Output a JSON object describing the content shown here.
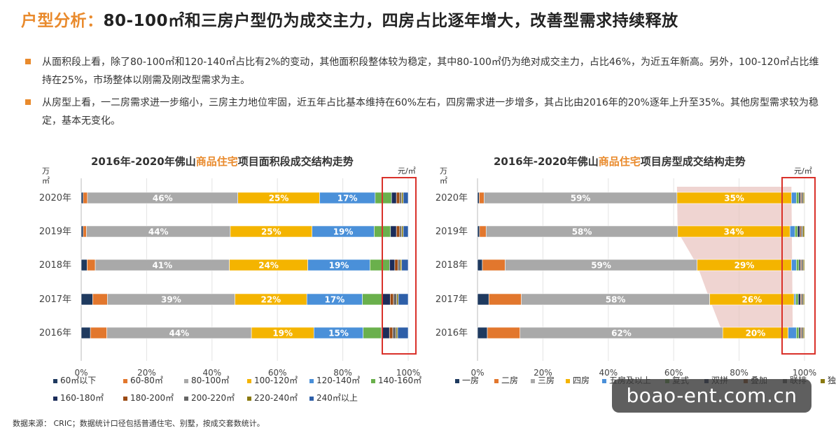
{
  "header": {
    "title_prefix": "户型分析：",
    "title_rest": "80-100㎡和三房户型仍为成交主力，四房占比逐年增大，改善型需求持续释放"
  },
  "bullets": [
    "从面积段上看，除了80-100㎡和120-140㎡占比有2%的变动，其他面积段整体较为稳定，其中80-100㎡仍为绝对成交主力，占比46%，为近五年新高。另外，100-120㎡占比维持在25%，市场整体以刚需及刚改型需求为主。",
    "从房型上看，一二房需求进一步缩小，三房主力地位牢固，近五年占比基本维持在60%左右，四房需求进一步增多，其占比由2016年的20%逐年上升至35%。其他房型需求较为稳定，基本无变化。"
  ],
  "colors": {
    "accent": "#e98a2c",
    "highlight_box": "#d9312a",
    "trend_band": "#eac6c1"
  },
  "chart_data": [
    {
      "type": "bar",
      "orientation": "horizontal",
      "stacked": "percent",
      "title_parts": [
        "2016年-2020年佛山",
        "商品住宅",
        "项目面积段成交结构走势"
      ],
      "title_highlight_color": "#e98a2c",
      "unit_left": "万㎡",
      "unit_right": "元/㎡",
      "categories": [
        "2020年",
        "2019年",
        "2018年",
        "2017年",
        "2016年"
      ],
      "xticks": [
        "0%",
        "20%",
        "40%",
        "60%",
        "80%",
        "100%"
      ],
      "xlim": [
        0,
        100
      ],
      "legend_position": "bottom",
      "highlight_box": "right edge, last segments",
      "series": [
        {
          "name": "60㎡以下",
          "color": "#1f3a5f",
          "values": [
            0.6,
            0.6,
            1.8,
            3.5,
            2.8
          ]
        },
        {
          "name": "60-80㎡",
          "color": "#e2772d",
          "values": [
            1.3,
            1.0,
            2.5,
            4.5,
            5.0
          ]
        },
        {
          "name": "80-100㎡",
          "color": "#a9a9a9",
          "values": [
            46,
            44,
            41,
            39,
            44
          ],
          "labels": [
            "46%",
            "44%",
            "41%",
            "39%",
            "44%"
          ]
        },
        {
          "name": "100-120㎡",
          "color": "#f4b400",
          "values": [
            25,
            25,
            24,
            22,
            19
          ],
          "labels": [
            "25%",
            "25%",
            "24%",
            "22%",
            "19%"
          ]
        },
        {
          "name": "120-140㎡",
          "color": "#4a90d9",
          "values": [
            17,
            19,
            19,
            17,
            15
          ],
          "labels": [
            "17%",
            "19%",
            "19%",
            "17%",
            "15%"
          ]
        },
        {
          "name": "140-160㎡",
          "color": "#6ab04c",
          "values": [
            5,
            5,
            6,
            6,
            5.5
          ]
        },
        {
          "name": "160-180㎡",
          "color": "#1c2d5a",
          "values": [
            1.5,
            1.8,
            1.6,
            2.5,
            2.5
          ]
        },
        {
          "name": "180-200㎡",
          "color": "#9b4a13",
          "values": [
            1.0,
            1.0,
            1.0,
            1.0,
            1.0
          ]
        },
        {
          "name": "200-220㎡",
          "color": "#666666",
          "values": [
            0.6,
            0.6,
            0.6,
            1.0,
            1.0
          ]
        },
        {
          "name": "220-240㎡",
          "color": "#8a7a10",
          "values": [
            0.5,
            0.5,
            0.5,
            0.5,
            0.5
          ]
        },
        {
          "name": "240㎡以上",
          "color": "#2e5fa8",
          "values": [
            1.5,
            1.5,
            2.0,
            3.0,
            3.2
          ]
        }
      ]
    },
    {
      "type": "bar",
      "orientation": "horizontal",
      "stacked": "percent",
      "title_parts": [
        "2016年-2020年佛山",
        "商品住宅",
        "项目房型成交结构走势"
      ],
      "title_highlight_color": "#e98a2c",
      "unit_left": "万㎡",
      "unit_right": "元/㎡",
      "categories": [
        "2020年",
        "2019年",
        "2018年",
        "2017年",
        "2016年"
      ],
      "xticks": [
        "0%",
        "20%",
        "40%",
        "60%",
        "80%",
        "100%"
      ],
      "xlim": [
        0,
        100
      ],
      "legend_position": "bottom",
      "highlight_box": "right edge, last segments",
      "trend_band": "shaded area between 三房 and 四房 segments",
      "series": [
        {
          "name": "一房",
          "color": "#1f3a5f",
          "values": [
            0.5,
            0.6,
            1.5,
            3.5,
            3.0
          ]
        },
        {
          "name": "二房",
          "color": "#e2772d",
          "values": [
            1.5,
            2.0,
            7.0,
            10.0,
            10.0
          ]
        },
        {
          "name": "三房",
          "color": "#a9a9a9",
          "values": [
            59,
            58,
            59,
            58,
            62
          ],
          "labels": [
            "59%",
            "58%",
            "59%",
            "58%",
            "62%"
          ]
        },
        {
          "name": "四房",
          "color": "#f4b400",
          "values": [
            35,
            34,
            29,
            26,
            20
          ],
          "labels": [
            "35%",
            "34%",
            "29%",
            "26%",
            "20%"
          ]
        },
        {
          "name": "五房及以上",
          "color": "#4a90d9",
          "values": [
            1.5,
            1.5,
            1.5,
            0.5,
            2.5
          ]
        },
        {
          "name": "复式",
          "color": "#6ab04c",
          "values": [
            0.8,
            0.8,
            0.8,
            0.8,
            0.8
          ]
        },
        {
          "name": "双拼",
          "color": "#1c2d5a",
          "values": [
            0.5,
            0.7,
            0.5,
            0.7,
            0.5
          ]
        },
        {
          "name": "叠加",
          "color": "#9b4a13",
          "values": [
            0.3,
            0.4,
            0.3,
            0.3,
            0.3
          ]
        },
        {
          "name": "联排",
          "color": "#666666",
          "values": [
            0.5,
            0.5,
            0.5,
            0.5,
            0.5
          ]
        },
        {
          "name": "独栋",
          "color": "#8a7a10",
          "values": [
            0.4,
            0.5,
            0.4,
            0.4,
            0.4
          ]
        }
      ]
    }
  ],
  "source_note": "数据来源：  CRIC；数据统计口径包括普通住宅、别墅，按成交套数统计。",
  "watermark": "boao-ent.com.cn"
}
